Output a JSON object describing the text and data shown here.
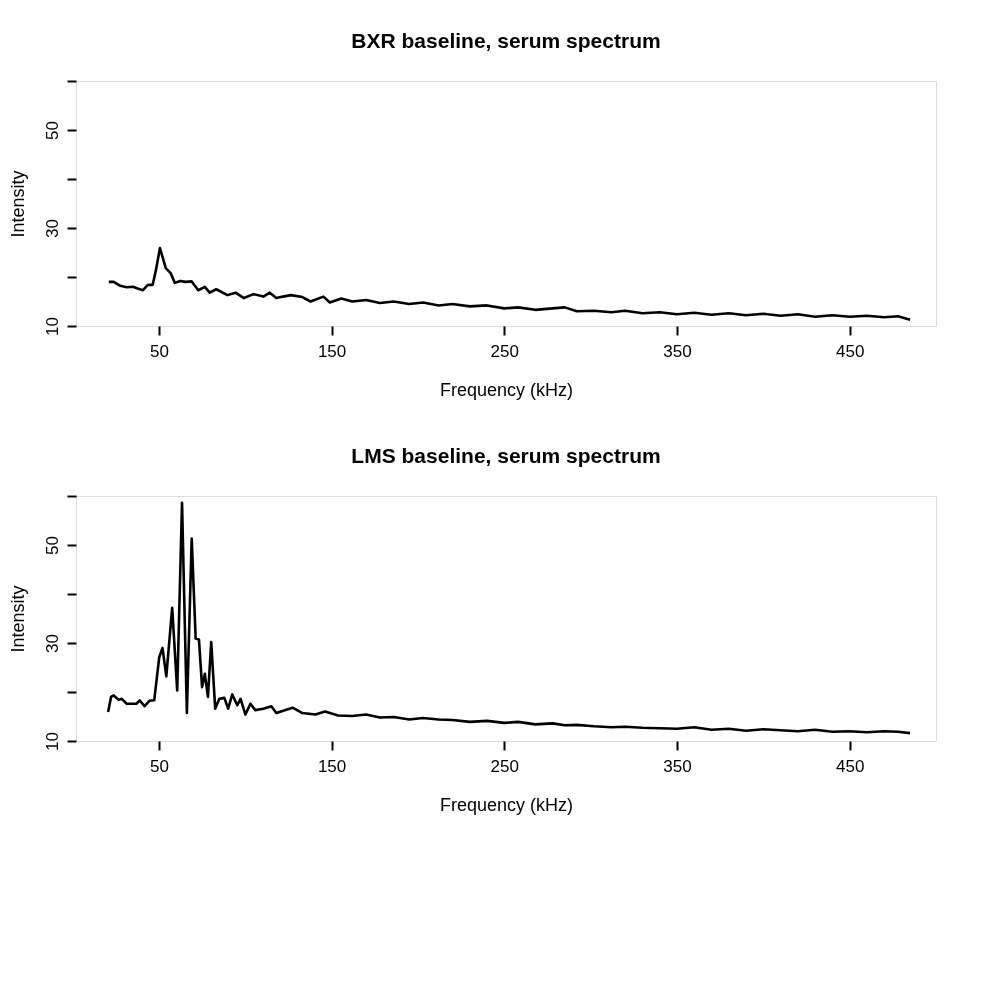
{
  "chart_data": [
    {
      "type": "line",
      "title": "BXR baseline, serum spectrum",
      "xlabel": "Frequency (kHz)",
      "ylabel": "Intensity",
      "x": [
        21,
        23.8,
        27.6,
        31.4,
        35.1,
        38,
        40.8,
        43.6,
        46.4,
        48.3,
        50.6,
        52.1,
        54,
        56.8,
        59.2,
        62.4,
        65.3,
        69,
        72.8,
        76.6,
        79.4,
        83.2,
        89.7,
        94.4,
        99.2,
        104.8,
        110.5,
        114.2,
        118,
        121.8,
        126.4,
        133.1,
        137.8,
        145.3,
        149,
        155.6,
        162,
        170,
        178,
        186,
        195,
        203,
        212,
        220,
        230,
        240,
        250,
        258,
        268,
        278,
        285,
        292,
        302,
        312,
        320,
        330,
        340,
        350,
        360,
        370,
        380,
        390,
        400,
        410,
        420,
        430,
        440,
        450,
        460,
        470,
        478,
        485
      ],
      "series": [
        {
          "color": "#000000",
          "values": [
            19.0,
            19.0,
            18.2,
            17.9,
            18.0,
            17.6,
            17.3,
            18.4,
            18.4,
            21.4,
            25.9,
            24.1,
            21.8,
            20.8,
            18.8,
            19.2,
            19.0,
            19.1,
            17.3,
            18.0,
            16.8,
            17.5,
            16.3,
            16.8,
            15.7,
            16.5,
            16.0,
            16.8,
            15.7,
            16.0,
            16.3,
            15.9,
            15.0,
            16.0,
            14.8,
            15.6,
            15.0,
            15.3,
            14.7,
            15.0,
            14.5,
            14.8,
            14.2,
            14.5,
            14.0,
            14.2,
            13.6,
            13.8,
            13.3,
            13.6,
            13.8,
            13.0,
            13.1,
            12.8,
            13.1,
            12.6,
            12.8,
            12.4,
            12.7,
            12.3,
            12.6,
            12.2,
            12.5,
            12.1,
            12.4,
            11.9,
            12.2,
            11.9,
            12.1,
            11.8,
            12.0,
            11.3
          ]
        }
      ],
      "xlim": [
        2,
        500
      ],
      "ylim": [
        10,
        60
      ],
      "xticks": [
        50,
        150,
        250,
        350,
        450
      ],
      "yticks": [
        10,
        {
          "value": 20,
          "label": null
        },
        30,
        {
          "value": 40,
          "label": null
        },
        50,
        {
          "value": 60,
          "label": null
        }
      ],
      "grid": false,
      "line_style": "solid"
    },
    {
      "type": "line",
      "title": "LMS baseline, serum spectrum",
      "xlabel": "Frequency (kHz)",
      "ylabel": "Intensity",
      "x": [
        20.6,
        22.3,
        23.8,
        26.7,
        28.5,
        31.4,
        37,
        38.9,
        41.7,
        44.5,
        47.3,
        50.2,
        52.1,
        54.3,
        57.7,
        60.6,
        63.4,
        66.2,
        69,
        71.3,
        73.2,
        75,
        76.6,
        78.4,
        80.3,
        82.6,
        85,
        87.9,
        90.1,
        92.5,
        95.4,
        97.3,
        100.1,
        103,
        105.8,
        110.5,
        115.1,
        118,
        127.4,
        133.1,
        140.6,
        146.2,
        153.8,
        162,
        170,
        178,
        186,
        195,
        203,
        212,
        220,
        230,
        240,
        250,
        258,
        268,
        278,
        285,
        292,
        302,
        312,
        320,
        330,
        340,
        350,
        360,
        370,
        380,
        390,
        400,
        410,
        420,
        430,
        440,
        450,
        460,
        470,
        478,
        485
      ],
      "series": [
        {
          "color": "#000000",
          "values": [
            15.9,
            19.0,
            19.3,
            18.4,
            18.6,
            17.6,
            17.6,
            18.3,
            17.1,
            18.2,
            18.3,
            27.1,
            29.0,
            23.2,
            37.2,
            20.3,
            58.6,
            15.7,
            51.3,
            30.9,
            30.7,
            21.0,
            23.7,
            19.0,
            30.2,
            16.6,
            18.6,
            18.8,
            16.6,
            19.5,
            17.3,
            18.6,
            15.4,
            17.6,
            16.3,
            16.6,
            17.1,
            15.7,
            16.8,
            15.7,
            15.4,
            16.0,
            15.2,
            15.1,
            15.4,
            14.8,
            14.9,
            14.4,
            14.7,
            14.4,
            14.3,
            13.9,
            14.1,
            13.7,
            13.9,
            13.4,
            13.6,
            13.2,
            13.3,
            13.0,
            12.8,
            12.9,
            12.7,
            12.6,
            12.5,
            12.8,
            12.3,
            12.5,
            12.1,
            12.4,
            12.2,
            12.0,
            12.3,
            11.9,
            12.0,
            11.8,
            12.0,
            11.9,
            11.6
          ]
        }
      ],
      "xlim": [
        2,
        500
      ],
      "ylim": [
        10,
        60
      ],
      "xticks": [
        50,
        150,
        250,
        350,
        450
      ],
      "yticks": [
        10,
        {
          "value": 20,
          "label": null
        },
        30,
        {
          "value": 40,
          "label": null
        },
        50,
        {
          "value": 60,
          "label": null
        }
      ],
      "grid": false,
      "line_style": "solid"
    }
  ]
}
